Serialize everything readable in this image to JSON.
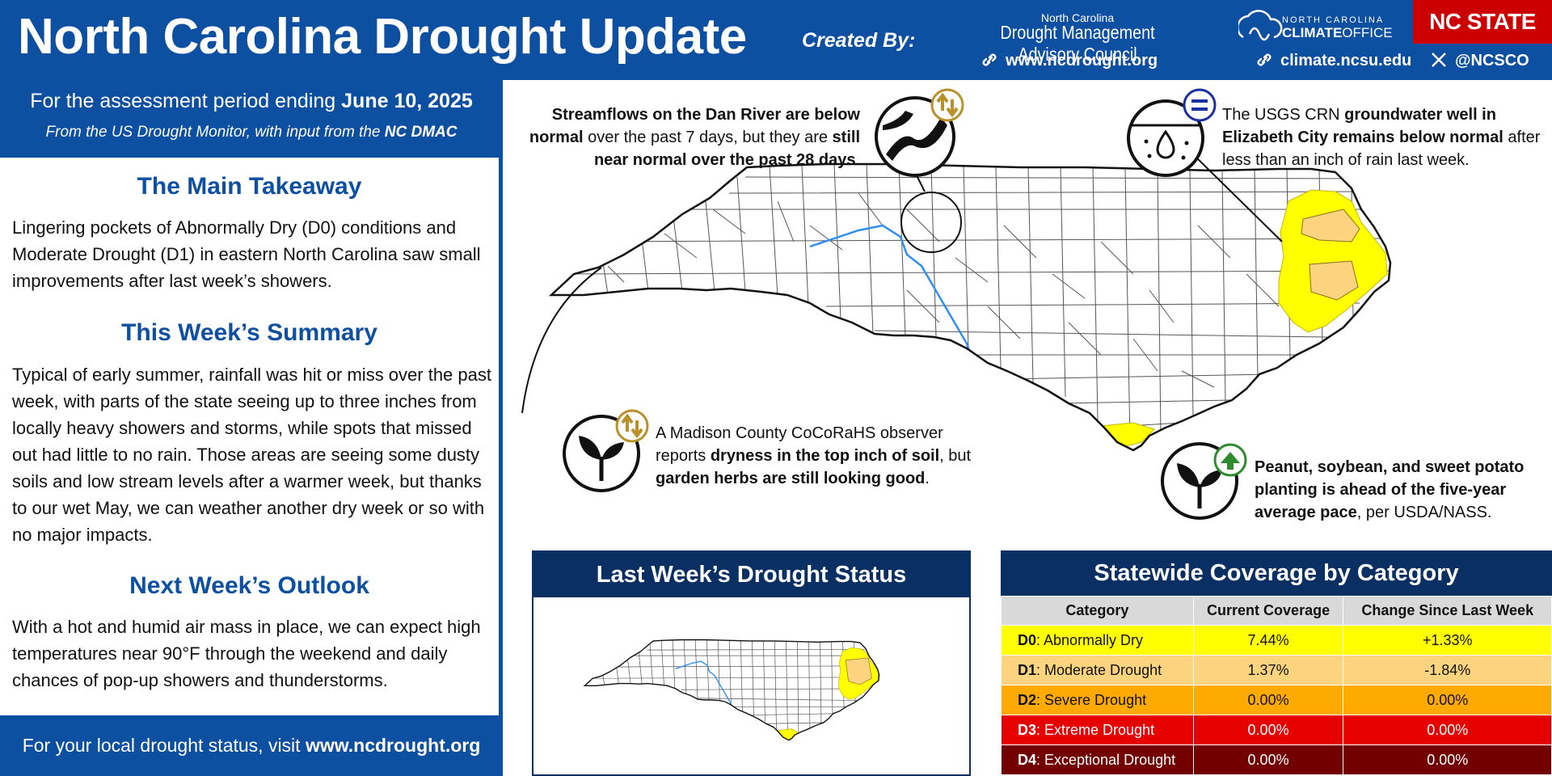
{
  "header": {
    "title": "North Carolina Drought Update",
    "created_by": "Created By:",
    "dmac_line1": "North Carolina",
    "dmac_line2": "Drought Management Advisory Council",
    "link_ncdrought": "www.ncdrought.org",
    "link_climate": "climate.ncsu.edu",
    "link_social": "@NCSCO",
    "climate_office_line1": "NORTH CAROLINA",
    "climate_office_line2_a": "CLIMATE",
    "climate_office_line2_b": "OFFICE",
    "nc_state": "NC STATE",
    "brand_blue": "#0d4fa0",
    "nc_state_red": "#cc0000"
  },
  "period": {
    "prefix": "For the assessment period ending",
    "date": "June 10, 2025",
    "source_prefix": "From the US Drought Monitor, with input from the",
    "source_org": "NC DMAC"
  },
  "sections": {
    "takeaway_title": "The Main Takeaway",
    "takeaway_text": "Lingering pockets of Abnormally Dry (D0) conditions and Moderate Drought (D1) in eastern North Carolina saw small improvements after last week’s showers.",
    "summary_title": "This Week’s Summary",
    "summary_text": "Typical of early summer, rainfall was hit or miss over the past week, with parts of the state seeing up to three inches from locally heavy showers and storms, while spots that missed out had little to no rain. Those areas are seeing some dusty soils and low stream levels after a warmer week, but thanks to our wet May, we can weather another dry week or so with no major impacts.",
    "outlook_title": "Next Week’s Outlook",
    "outlook_text": "With a hot and humid air mass in place, we can expect high temperatures near 90°F through the weekend and daily chances of pop-up showers and thunderstorms."
  },
  "footer": {
    "prefix": "For your local drought status, visit",
    "link": "www.ncdrought.org"
  },
  "callouts": {
    "dan_river": {
      "b1": "Streamflows on the Dan River are below normal",
      "t1": " over the past 7 days, but they are ",
      "b2": "still near normal over the past 28 days",
      "t2": ".",
      "icon": "river-icon",
      "trend": "mixed"
    },
    "groundwater": {
      "t1": "The USGS CRN ",
      "b1": "groundwater well in Elizabeth City remains below normal",
      "t2": " after less than an inch of rain last week.",
      "icon": "groundwater-icon",
      "trend": "unchanged"
    },
    "cocorahs": {
      "t1": "A Madison County CoCoRaHS observer reports ",
      "b1": "dryness in the top inch of soil",
      "t2": ", but ",
      "b2": "garden herbs are still looking good",
      "t3": ".",
      "icon": "plant-icon",
      "trend": "mixed"
    },
    "planting": {
      "b1": "Peanut, soybean, and sweet potato planting is ahead of the five-year average pace",
      "t1": ", per USDA/NASS.",
      "icon": "plant-icon",
      "trend": "up"
    }
  },
  "last_week": {
    "title": "Last Week’s Drought Status"
  },
  "coverage": {
    "title": "Statewide Coverage by Category",
    "headers": [
      "Category",
      "Current Coverage",
      "Change Since Last Week"
    ],
    "rows": [
      {
        "code": "D0",
        "label": ": Abnormally Dry",
        "current": "7.44%",
        "change": "+1.33%",
        "bg": "#ffff00",
        "fg": "#111111"
      },
      {
        "code": "D1",
        "label": ": Moderate Drought",
        "current": "1.37%",
        "change": "-1.84%",
        "bg": "#fcd37f",
        "fg": "#111111"
      },
      {
        "code": "D2",
        "label": ": Severe Drought",
        "current": "0.00%",
        "change": "0.00%",
        "bg": "#ffaa00",
        "fg": "#111111"
      },
      {
        "code": "D3",
        "label": ": Extreme Drought",
        "current": "0.00%",
        "change": "0.00%",
        "bg": "#e60000",
        "fg": "#ffffff"
      },
      {
        "code": "D4",
        "label": ": Exceptional Drought",
        "current": "0.00%",
        "change": "0.00%",
        "bg": "#730000",
        "fg": "#ffffff"
      }
    ]
  }
}
